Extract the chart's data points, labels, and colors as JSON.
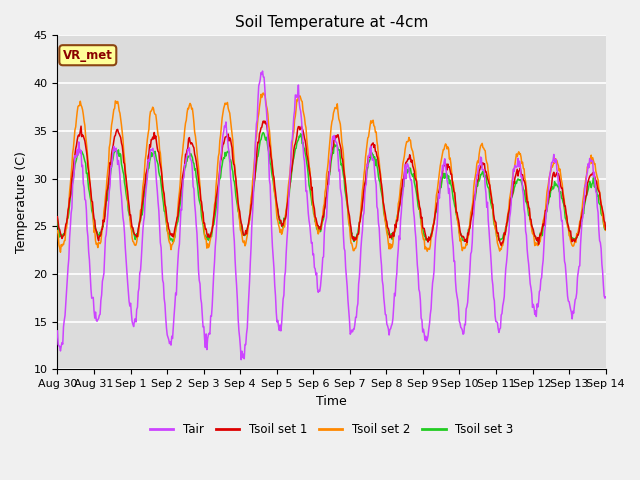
{
  "title": "Soil Temperature at -4cm",
  "xlabel": "Time",
  "ylabel": "Temperature (C)",
  "ylim": [
    10,
    45
  ],
  "background_color": "#dcdcdc",
  "plot_bg_color": "#dcdcdc",
  "grid_color": "#ffffff",
  "legend_labels": [
    "Tair",
    "Tsoil set 1",
    "Tsoil set 2",
    "Tsoil set 3"
  ],
  "legend_colors": [
    "#cc44ff",
    "#dd0000",
    "#ff8800",
    "#22cc22"
  ],
  "annotation_text": "VR_met",
  "annotation_box_color": "#ffff99",
  "annotation_box_edge": "#8B4513",
  "x_tick_labels": [
    "Aug 30",
    "Aug 31",
    "Sep 1",
    "Sep 2",
    "Sep 3",
    "Sep 4",
    "Sep 5",
    "Sep 6",
    "Sep 7",
    "Sep 8",
    "Sep 9",
    "Sep 10",
    "Sep 11",
    "Sep 12",
    "Sep 13",
    "Sep 14"
  ],
  "num_points": 720,
  "fig_width": 6.4,
  "fig_height": 4.8,
  "fig_dpi": 100
}
